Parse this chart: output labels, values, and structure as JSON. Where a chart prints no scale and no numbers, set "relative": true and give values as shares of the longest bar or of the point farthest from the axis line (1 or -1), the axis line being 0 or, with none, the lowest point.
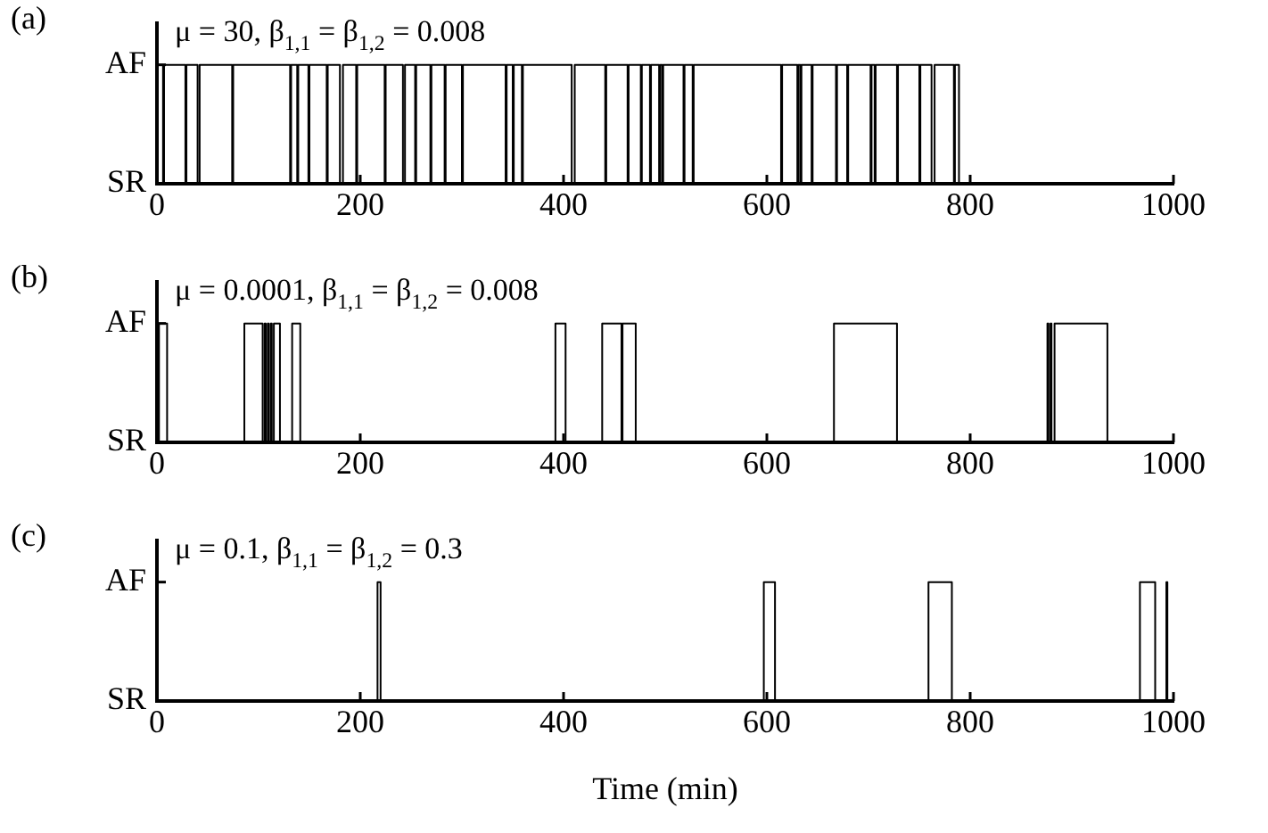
{
  "chart_data": [
    {
      "type": "step",
      "title": "(a)",
      "annotations": [
        "μ = 30, β$_{1,1}$ = β$_{1,2}$ = 0.008",
        "AF",
        "SR"
      ],
      "color": "#000000",
      "marker": "none",
      "relative": true,
      "x": [
        0,
        6,
        7,
        28,
        29,
        40,
        42,
        74,
        75,
        131,
        132,
        138,
        139,
        149,
        150,
        167,
        168,
        180,
        183,
        196,
        197,
        224,
        225,
        242,
        244,
        254,
        255,
        269,
        270,
        283,
        284,
        300,
        301,
        343,
        344,
        350,
        351,
        359,
        360,
        408,
        411,
        441,
        442,
        463,
        464,
        476,
        477,
        485,
        486,
        494,
        495,
        497,
        498,
        518,
        519,
        527,
        528,
        614,
        615,
        630,
        631,
        633,
        634,
        644,
        645,
        668,
        669,
        679,
        680,
        702,
        703,
        706,
        707,
        728,
        729,
        750,
        751,
        762,
        765,
        784,
        785,
        789,
        1000
      ],
      "values": [
        1,
        0,
        1,
        0,
        1,
        0,
        1,
        0,
        1,
        0,
        1,
        0,
        1,
        0,
        1,
        0,
        1,
        0,
        1,
        0,
        1,
        0,
        1,
        0,
        1,
        0,
        1,
        0,
        1,
        0,
        1,
        0,
        1,
        0,
        1,
        0,
        1,
        0,
        1,
        0,
        1,
        0,
        1,
        0,
        1,
        0,
        1,
        0,
        1,
        0,
        1,
        0,
        1,
        0,
        1,
        0,
        1,
        0,
        1,
        0,
        1,
        0,
        1,
        0,
        1,
        0,
        1,
        0,
        1,
        0,
        1,
        0,
        1,
        0,
        1,
        0,
        1,
        0,
        1,
        0,
        1,
        0,
        0
      ],
      "xlim": [
        0,
        1000
      ],
      "xticks": [
        0,
        200,
        400,
        600,
        800,
        1000
      ]
    },
    {
      "type": "step",
      "title": "(b)",
      "annotations": [
        "μ = 0.0001, β$_{1,1}$ = β$_{1,2}$ = 0.008",
        "AF",
        "SR"
      ],
      "color": "#000000",
      "marker": "none",
      "relative": true,
      "x": [
        0,
        2,
        10,
        86,
        104,
        106,
        107,
        109,
        110,
        112,
        113,
        115,
        121,
        133,
        141,
        392,
        402,
        438,
        457,
        458,
        471,
        666,
        728,
        876,
        877,
        879,
        880,
        883,
        935,
        1000
      ],
      "values": [
        0,
        1,
        0,
        1,
        0,
        1,
        0,
        1,
        0,
        1,
        0,
        1,
        0,
        1,
        0,
        1,
        0,
        1,
        0,
        1,
        0,
        1,
        0,
        1,
        0,
        1,
        0,
        1,
        0,
        0
      ],
      "xlim": [
        0,
        1000
      ],
      "xticks": [
        0,
        200,
        400,
        600,
        800,
        1000
      ]
    },
    {
      "type": "step",
      "title": "(c)",
      "annotations": [
        "μ = 0.1, β$_{1,1}$ = β$_{1,2}$ = 0.3",
        "AF",
        "SR"
      ],
      "xlabel": "Time (min)",
      "color": "#000000",
      "marker": "none",
      "relative": true,
      "x": [
        0,
        217,
        220,
        597,
        608,
        759,
        782,
        967,
        982,
        993,
        994,
        1000
      ],
      "values": [
        0,
        1,
        0,
        1,
        0,
        1,
        0,
        1,
        0,
        1,
        0,
        0
      ],
      "xlim": [
        0,
        1000
      ],
      "xticks": [
        0,
        200,
        400,
        600,
        800,
        1000
      ]
    }
  ]
}
